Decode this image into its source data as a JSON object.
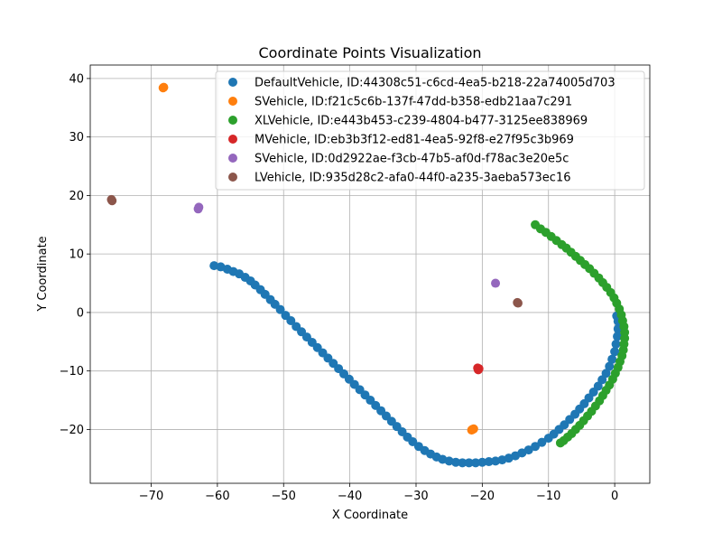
{
  "chart_data": {
    "type": "scatter",
    "title": "Coordinate Points Visualization",
    "xlabel": "X Coordinate",
    "ylabel": "Y Coordinate",
    "xlim": [
      -79.2,
      5.3
    ],
    "ylim": [
      -29.2,
      42.3
    ],
    "xticks": [
      -70,
      -60,
      -50,
      -40,
      -30,
      -20,
      -10,
      0
    ],
    "yticks": [
      -20,
      -10,
      0,
      10,
      20,
      30,
      40
    ],
    "xtick_labels": [
      "−70",
      "−60",
      "−50",
      "−40",
      "−30",
      "−20",
      "−10",
      "0"
    ],
    "ytick_labels": [
      "−20",
      "−10",
      "0",
      "10",
      "20",
      "30",
      "40"
    ],
    "grid": true,
    "legend_position": "top-right",
    "series": [
      {
        "name": "DefaultVehicle, ID:44308c51-c6cd-4ea5-b218-22a74005d703",
        "color": "#1f77b4",
        "points": [
          [
            -60.5,
            8.0
          ],
          [
            -59.5,
            7.8
          ],
          [
            -58.5,
            7.4
          ],
          [
            -57.6,
            7.0
          ],
          [
            -56.7,
            6.6
          ],
          [
            -55.8,
            6.0
          ],
          [
            -55.0,
            5.4
          ],
          [
            -54.3,
            4.7
          ],
          [
            -53.5,
            3.9
          ],
          [
            -52.8,
            3.1
          ],
          [
            -52.0,
            2.2
          ],
          [
            -51.3,
            1.4
          ],
          [
            -50.5,
            0.5
          ],
          [
            -49.7,
            -0.5
          ],
          [
            -48.9,
            -1.4
          ],
          [
            -48.1,
            -2.4
          ],
          [
            -47.3,
            -3.3
          ],
          [
            -46.5,
            -4.2
          ],
          [
            -45.7,
            -5.1
          ],
          [
            -44.9,
            -6.0
          ],
          [
            -44.1,
            -6.9
          ],
          [
            -43.3,
            -7.8
          ],
          [
            -42.5,
            -8.7
          ],
          [
            -41.7,
            -9.6
          ],
          [
            -40.9,
            -10.5
          ],
          [
            -40.1,
            -11.4
          ],
          [
            -39.3,
            -12.3
          ],
          [
            -38.5,
            -13.2
          ],
          [
            -37.7,
            -14.1
          ],
          [
            -36.9,
            -15.0
          ],
          [
            -36.1,
            -15.9
          ],
          [
            -35.3,
            -16.8
          ],
          [
            -34.5,
            -17.7
          ],
          [
            -33.7,
            -18.6
          ],
          [
            -32.9,
            -19.5
          ],
          [
            -32.1,
            -20.4
          ],
          [
            -31.3,
            -21.3
          ],
          [
            -30.5,
            -22.1
          ],
          [
            -29.6,
            -22.9
          ],
          [
            -28.7,
            -23.6
          ],
          [
            -27.8,
            -24.2
          ],
          [
            -26.9,
            -24.7
          ],
          [
            -26.0,
            -25.1
          ],
          [
            -25.0,
            -25.4
          ],
          [
            -24.0,
            -25.6
          ],
          [
            -23.0,
            -25.7
          ],
          [
            -22.0,
            -25.7
          ],
          [
            -21.0,
            -25.7
          ],
          [
            -20.0,
            -25.6
          ],
          [
            -19.0,
            -25.5
          ],
          [
            -18.0,
            -25.4
          ],
          [
            -17.0,
            -25.2
          ],
          [
            -16.0,
            -24.9
          ],
          [
            -15.0,
            -24.5
          ],
          [
            -14.0,
            -24.0
          ],
          [
            -13.0,
            -23.5
          ],
          [
            -12.0,
            -22.9
          ],
          [
            -11.0,
            -22.2
          ],
          [
            -10.0,
            -21.5
          ],
          [
            -9.2,
            -20.8
          ],
          [
            -8.4,
            -20.0
          ],
          [
            -7.6,
            -19.2
          ],
          [
            -6.8,
            -18.3
          ],
          [
            -6.0,
            -17.4
          ],
          [
            -5.3,
            -16.5
          ],
          [
            -4.6,
            -15.6
          ],
          [
            -3.9,
            -14.6
          ],
          [
            -3.2,
            -13.6
          ],
          [
            -2.5,
            -12.6
          ],
          [
            -1.9,
            -11.5
          ],
          [
            -1.3,
            -10.4
          ],
          [
            -0.8,
            -9.2
          ],
          [
            -0.4,
            -8.0
          ],
          [
            0.0,
            -6.7
          ],
          [
            0.2,
            -5.4
          ],
          [
            0.4,
            -4.1
          ],
          [
            0.5,
            -2.8
          ],
          [
            0.5,
            -1.5
          ],
          [
            0.3,
            -0.6
          ]
        ]
      },
      {
        "name": "SVehicle, ID:f21c5c6b-137f-47dd-b358-edb21aa7c291",
        "color": "#ff7f0e",
        "points": [
          [
            -68.2,
            38.4
          ],
          [
            -68.1,
            38.5
          ],
          [
            -21.5,
            -20.0
          ],
          [
            -21.3,
            -19.9
          ],
          [
            -21.6,
            -20.1
          ]
        ]
      },
      {
        "name": "XLVehicle, ID:e443b453-c239-4804-b477-3125ee838969",
        "color": "#2ca02c",
        "points": [
          [
            -12.0,
            15.0
          ],
          [
            -11.2,
            14.3
          ],
          [
            -10.4,
            13.7
          ],
          [
            -9.6,
            13.0
          ],
          [
            -8.8,
            12.3
          ],
          [
            -8.0,
            11.6
          ],
          [
            -7.3,
            11.0
          ],
          [
            -6.6,
            10.3
          ],
          [
            -5.9,
            9.6
          ],
          [
            -5.2,
            8.9
          ],
          [
            -4.5,
            8.2
          ],
          [
            -3.8,
            7.5
          ],
          [
            -3.1,
            6.7
          ],
          [
            -2.4,
            5.9
          ],
          [
            -1.8,
            5.1
          ],
          [
            -1.2,
            4.3
          ],
          [
            -0.6,
            3.4
          ],
          [
            -0.1,
            2.5
          ],
          [
            0.3,
            1.6
          ],
          [
            0.7,
            0.6
          ],
          [
            1.0,
            -0.4
          ],
          [
            1.2,
            -1.4
          ],
          [
            1.4,
            -2.4
          ],
          [
            1.5,
            -3.4
          ],
          [
            1.5,
            -4.4
          ],
          [
            1.4,
            -5.4
          ],
          [
            1.3,
            -6.4
          ],
          [
            1.1,
            -7.4
          ],
          [
            0.8,
            -8.4
          ],
          [
            0.5,
            -9.4
          ],
          [
            0.1,
            -10.4
          ],
          [
            -0.3,
            -11.4
          ],
          [
            -0.8,
            -12.4
          ],
          [
            -1.3,
            -13.3
          ],
          [
            -1.8,
            -14.2
          ],
          [
            -2.3,
            -15.1
          ],
          [
            -2.9,
            -16.0
          ],
          [
            -3.5,
            -16.9
          ],
          [
            -4.1,
            -17.7
          ],
          [
            -4.7,
            -18.5
          ],
          [
            -5.3,
            -19.3
          ],
          [
            -5.9,
            -20.0
          ],
          [
            -6.5,
            -20.7
          ],
          [
            -7.1,
            -21.3
          ],
          [
            -7.7,
            -21.9
          ],
          [
            -8.2,
            -22.3
          ]
        ]
      },
      {
        "name": "MVehicle, ID:eb3b3f12-ed81-4ea5-92f8-e27f95c3b969",
        "color": "#d62728",
        "points": [
          [
            -20.7,
            -9.5
          ],
          [
            -20.5,
            -9.6
          ],
          [
            -20.6,
            -9.8
          ]
        ]
      },
      {
        "name": "SVehicle, ID:0d2922ae-f3cb-47b5-af0d-f78ac3e20e5c",
        "color": "#9467bd",
        "points": [
          [
            -62.8,
            18.0
          ],
          [
            -62.9,
            17.7
          ],
          [
            -18.0,
            5.0
          ]
        ]
      },
      {
        "name": "LVehicle, ID:935d28c2-afa0-44f0-a235-3aeba573ec16",
        "color": "#8c564b",
        "points": [
          [
            -76.0,
            19.3
          ],
          [
            -75.9,
            19.1
          ],
          [
            -14.7,
            1.7
          ],
          [
            -14.6,
            1.6
          ]
        ]
      }
    ]
  }
}
